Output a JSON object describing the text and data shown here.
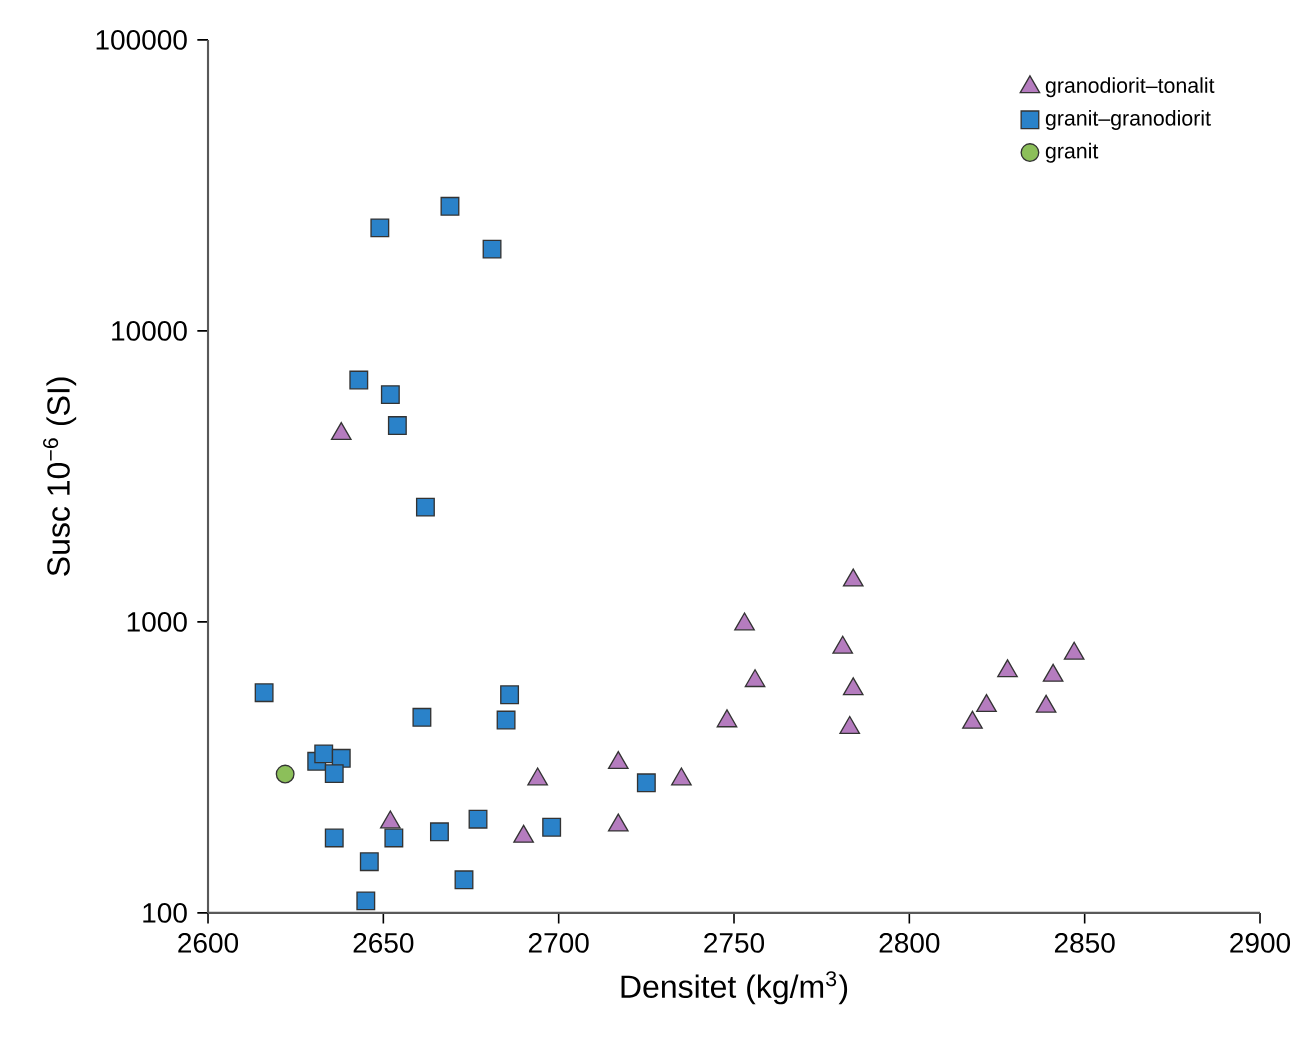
{
  "chart_data": {
    "type": "scatter",
    "xlabel": "Densitet (kg/m$^{3}$)",
    "ylabel": "Susc 10$^{−6}$ (SI)",
    "xlim": [
      2600,
      2900
    ],
    "xticks": [
      2600,
      2650,
      2700,
      2750,
      2800,
      2850,
      2900
    ],
    "ylim": [
      100,
      100000
    ],
    "yticks": [
      100,
      1000,
      10000,
      100000
    ],
    "log": "y",
    "grid": false,
    "legend": "top right",
    "series": [
      {
        "name": "granodiorit–tonalit",
        "color": "#b57cbf",
        "marker": "triangle",
        "x": [
          2638,
          2652,
          2694,
          2690,
          2717,
          2717,
          2735,
          2748,
          2753,
          2756,
          2784,
          2781,
          2784,
          2783,
          2818,
          2822,
          2828,
          2841,
          2839,
          2847
        ],
        "values": [
          4430,
          205,
          288,
          183,
          328,
          200,
          288,
          456,
          982,
          627,
          1390,
          817,
          588,
          433,
          451,
          515,
          678,
          654,
          512,
          779
        ]
      },
      {
        "name": "granit–granodiorit",
        "color": "#2a82c9",
        "marker": "square",
        "x": [
          2669,
          2649,
          2681,
          2643,
          2652,
          2654,
          2662,
          2616,
          2661,
          2686,
          2685,
          2631,
          2633,
          2638,
          2636,
          2636,
          2653,
          2666,
          2677,
          2698,
          2646,
          2673,
          2645,
          2725
        ],
        "values": [
          26800,
          22600,
          19100,
          6780,
          6040,
          4730,
          2480,
          571,
          470,
          562,
          460,
          332,
          352,
          340,
          301,
          181,
          181,
          190,
          210,
          197,
          150,
          130,
          110,
          280
        ]
      },
      {
        "name": "granit",
        "color": "#8cbf5a",
        "marker": "circle",
        "x": [
          2622
        ],
        "values": [
          300
        ]
      }
    ]
  }
}
